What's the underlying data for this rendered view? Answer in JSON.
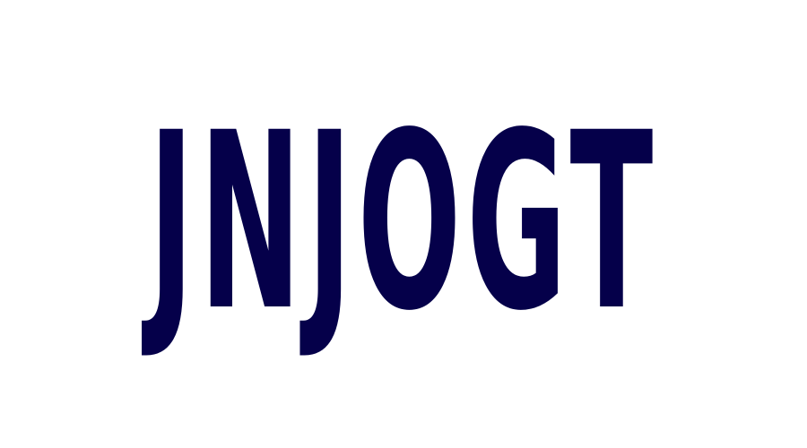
{
  "captcha": {
    "text": "JNJOGT",
    "text_color": "#05004a",
    "background_color": "#ffffff"
  }
}
